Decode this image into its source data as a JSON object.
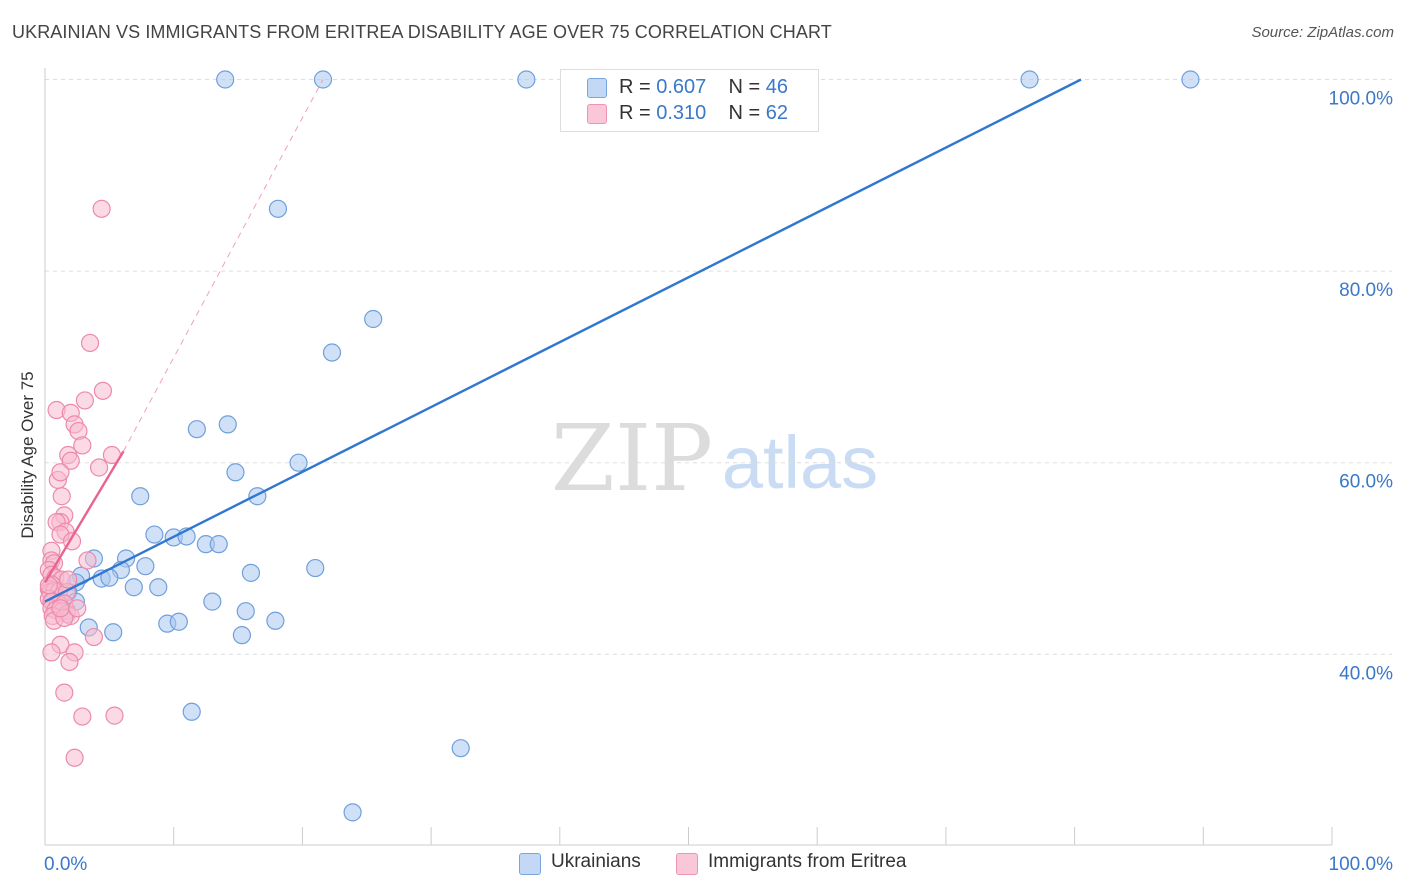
{
  "title": "UKRAINIAN VS IMMIGRANTS FROM ERITREA DISABILITY AGE OVER 75 CORRELATION CHART",
  "source": "Source: ZipAtlas.com",
  "watermark": {
    "zip": "ZIP",
    "atlas": "atlas"
  },
  "legend": {
    "rows": [
      {
        "r_label": "R =",
        "r_value": "0.607",
        "n_label": "N =",
        "n_value": "46"
      },
      {
        "r_label": "R =",
        "r_value": "0.310",
        "n_label": "N =",
        "n_value": "62"
      }
    ]
  },
  "bottom_legend": [
    "Ukrainians",
    "Immigrants from Eritrea"
  ],
  "colors": {
    "blue_fill": "#aac8f0",
    "blue_stroke": "#6f9fdc",
    "blue_line": "#2f77d0",
    "pink_fill": "#f7bcd0",
    "pink_stroke": "#ec8aab",
    "pink_line": "#e8648f",
    "grid": "#dddddd",
    "tick_label": "#3a78c9"
  },
  "chart_data": {
    "type": "scatter",
    "title": "UKRAINIAN VS IMMIGRANTS FROM ERITREA DISABILITY AGE OVER 75 CORRELATION CHART",
    "xlabel": "",
    "ylabel": "Disability Age Over 75",
    "xlim": [
      0,
      100
    ],
    "ylim": [
      20,
      102
    ],
    "x_tick_labels": [
      "0.0%",
      "100.0%"
    ],
    "y_ticks": [
      40,
      60,
      80,
      100
    ],
    "y_tick_labels": [
      "40.0%",
      "60.0%",
      "80.0%",
      "100.0%"
    ],
    "grid": true,
    "series": [
      {
        "name": "Ukrainians",
        "color": "#6f9fdc",
        "points": [
          [
            14,
            100
          ],
          [
            21.6,
            100
          ],
          [
            37.4,
            100
          ],
          [
            76.5,
            100
          ],
          [
            89,
            100
          ],
          [
            18.1,
            86.5
          ],
          [
            25.5,
            75
          ],
          [
            22.3,
            71.5
          ],
          [
            14.2,
            64
          ],
          [
            11.8,
            63.5
          ],
          [
            14.8,
            59
          ],
          [
            19.7,
            60
          ],
          [
            16.5,
            56.5
          ],
          [
            7.4,
            56.5
          ],
          [
            8.5,
            52.5
          ],
          [
            10,
            52.2
          ],
          [
            11,
            52.3
          ],
          [
            12.5,
            51.5
          ],
          [
            13.5,
            51.5
          ],
          [
            6.3,
            50
          ],
          [
            3.8,
            50
          ],
          [
            5.9,
            48.8
          ],
          [
            7.8,
            49.2
          ],
          [
            2.8,
            48.2
          ],
          [
            4.4,
            47.9
          ],
          [
            5,
            48
          ],
          [
            16,
            48.5
          ],
          [
            21,
            49
          ],
          [
            2.4,
            47.5
          ],
          [
            6.9,
            47
          ],
          [
            8.8,
            47
          ],
          [
            1.8,
            46.5
          ],
          [
            2.4,
            45.5
          ],
          [
            13,
            45.5
          ],
          [
            15.6,
            44.5
          ],
          [
            1.7,
            44.5
          ],
          [
            9.5,
            43.2
          ],
          [
            10.4,
            43.4
          ],
          [
            17.9,
            43.5
          ],
          [
            3.4,
            42.8
          ],
          [
            5.3,
            42.3
          ],
          [
            15.3,
            42
          ],
          [
            11.4,
            34
          ],
          [
            32.3,
            30.2
          ],
          [
            23.9,
            23.5
          ],
          [
            1,
            45.5
          ]
        ],
        "trend": {
          "from": [
            0,
            45.5
          ],
          "to": [
            80.5,
            100
          ]
        }
      },
      {
        "name": "Immigrants from Eritrea",
        "color": "#ec8aab",
        "points": [
          [
            4.4,
            86.5
          ],
          [
            3.5,
            72.5
          ],
          [
            4.5,
            67.5
          ],
          [
            3.1,
            66.5
          ],
          [
            0.9,
            65.5
          ],
          [
            2,
            65.2
          ],
          [
            2.3,
            64
          ],
          [
            2.6,
            63.3
          ],
          [
            2.9,
            61.8
          ],
          [
            1.8,
            60.8
          ],
          [
            2,
            60.2
          ],
          [
            5.2,
            60.8
          ],
          [
            1,
            58.2
          ],
          [
            1.2,
            59
          ],
          [
            1.3,
            56.5
          ],
          [
            1.5,
            54.5
          ],
          [
            1.2,
            53.8
          ],
          [
            0.9,
            53.8
          ],
          [
            1.6,
            52.8
          ],
          [
            1.2,
            52.5
          ],
          [
            2.1,
            51.8
          ],
          [
            0.5,
            50.8
          ],
          [
            0.5,
            49.8
          ],
          [
            0.7,
            49.5
          ],
          [
            3.3,
            49.8
          ],
          [
            0.3,
            48.8
          ],
          [
            0.5,
            48.3
          ],
          [
            0.8,
            48
          ],
          [
            1.3,
            47.8
          ],
          [
            0.5,
            47.3
          ],
          [
            0.3,
            46.8
          ],
          [
            0.4,
            46.5
          ],
          [
            0.7,
            46.6
          ],
          [
            1.1,
            46.6
          ],
          [
            1.7,
            46.5
          ],
          [
            0.3,
            45.8
          ],
          [
            0.6,
            45.5
          ],
          [
            0.5,
            45.5
          ],
          [
            1,
            45.3
          ],
          [
            1.5,
            45.3
          ],
          [
            0.5,
            44.8
          ],
          [
            0.8,
            44.6
          ],
          [
            1.3,
            44.5
          ],
          [
            1.7,
            44.2
          ],
          [
            0.6,
            44
          ],
          [
            2,
            44
          ],
          [
            0.7,
            43.5
          ],
          [
            1.5,
            43.8
          ],
          [
            1.2,
            44.8
          ],
          [
            2.5,
            44.8
          ],
          [
            0.3,
            47.2
          ],
          [
            1.8,
            47.8
          ],
          [
            3.8,
            41.8
          ],
          [
            1.2,
            41
          ],
          [
            0.5,
            40.2
          ],
          [
            2.3,
            40.2
          ],
          [
            1.9,
            39.2
          ],
          [
            1.5,
            36
          ],
          [
            2.9,
            33.5
          ],
          [
            5.4,
            33.6
          ],
          [
            2.3,
            29.2
          ],
          [
            4.2,
            59.5
          ]
        ],
        "trend": {
          "from": [
            0,
            47.5
          ],
          "to": [
            6.1,
            61.2
          ]
        },
        "trend_extension": {
          "from": [
            6.1,
            61.2
          ],
          "to": [
            21.6,
            100
          ]
        }
      }
    ]
  }
}
